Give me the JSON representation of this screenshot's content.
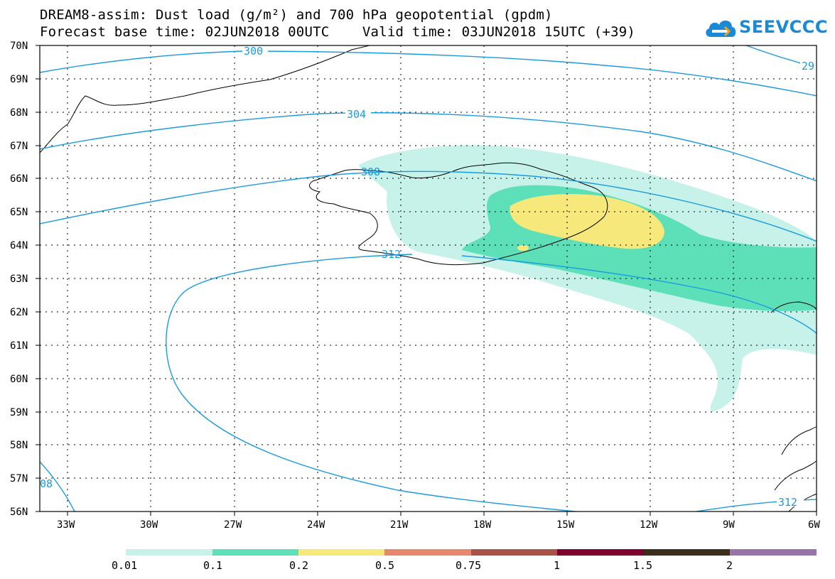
{
  "title": {
    "line1": "DREAM8-assim: Dust load (g/m²) and 700 hPa geopotential (gpdm)",
    "line2": "Forecast base time: 02JUN2018 00UTC    Valid time: 03JUN2018 15UTC (+39)"
  },
  "logo": {
    "text": "SEEVCCC",
    "icon": "cloud-icon",
    "color": "#1a8ad6"
  },
  "map": {
    "lat_ticks": [
      "70N",
      "69N",
      "68N",
      "67N",
      "66N",
      "65N",
      "64N",
      "63N",
      "62N",
      "61N",
      "60N",
      "59N",
      "58N",
      "57N",
      "56N"
    ],
    "lon_ticks": [
      "33W",
      "30W",
      "27W",
      "24W",
      "21W",
      "18W",
      "15W",
      "12W",
      "9W",
      "6W"
    ],
    "contour_color": "#1a9be0",
    "contour_labels": [
      "300",
      "304",
      "308",
      "312",
      "29",
      "08",
      "312"
    ],
    "dust_colors": {
      "low": "#c6f2ea",
      "mid": "#5de0b8",
      "high": "#f7e87c"
    }
  },
  "colorbar": {
    "colors": [
      "#c6f2ea",
      "#5de0b8",
      "#f7e87c",
      "#e8876b",
      "#a8524a",
      "#800030",
      "#3b2d1a",
      "#9a73a8"
    ],
    "labels": [
      "0.01",
      "0.1",
      "0.2",
      "0.5",
      "0.75",
      "1",
      "1.5",
      "2"
    ]
  }
}
